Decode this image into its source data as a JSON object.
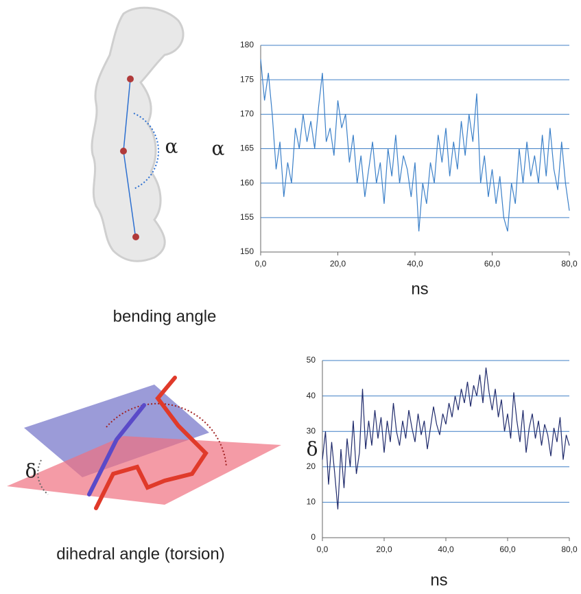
{
  "panels": [
    {
      "caption": "bending angle",
      "symbol": "α"
    },
    {
      "caption": "dihedral angle (torsion)",
      "symbol": "δ"
    }
  ],
  "chart_data": [
    {
      "type": "line",
      "ylabel": "α",
      "xlabel": "ns",
      "grid": true,
      "x": [
        0,
        1,
        2,
        3,
        4,
        5,
        6,
        7,
        8,
        9,
        10,
        11,
        12,
        13,
        14,
        15,
        16,
        17,
        18,
        19,
        20,
        21,
        22,
        23,
        24,
        25,
        26,
        27,
        28,
        29,
        30,
        31,
        32,
        33,
        34,
        35,
        36,
        37,
        38,
        39,
        40,
        41,
        42,
        43,
        44,
        45,
        46,
        47,
        48,
        49,
        50,
        51,
        52,
        53,
        54,
        55,
        56,
        57,
        58,
        59,
        60,
        61,
        62,
        63,
        64,
        65,
        66,
        67,
        68,
        69,
        70,
        71,
        72,
        73,
        74,
        75,
        76,
        77,
        78,
        79,
        80
      ],
      "series": [
        {
          "color": "#3a7fc8",
          "values": [
            178,
            172,
            176,
            170,
            162,
            166,
            158,
            163,
            160,
            168,
            165,
            170,
            166,
            169,
            165,
            171,
            176,
            166,
            168,
            164,
            172,
            168,
            170,
            163,
            167,
            160,
            164,
            158,
            162,
            166,
            160,
            163,
            157,
            165,
            161,
            167,
            160,
            164,
            162,
            158,
            163,
            153,
            160,
            157,
            163,
            160,
            167,
            163,
            168,
            161,
            166,
            162,
            169,
            164,
            170,
            166,
            173,
            160,
            164,
            158,
            162,
            157,
            161,
            155,
            153,
            160,
            157,
            165,
            160,
            166,
            161,
            164,
            160,
            167,
            161,
            168,
            162,
            159,
            166,
            160,
            156
          ]
        }
      ],
      "xlim": [
        0,
        80
      ],
      "xticks": [
        {
          "value": 0,
          "label": "0,0"
        },
        {
          "value": 20,
          "label": "20,0"
        },
        {
          "value": 40,
          "label": "40,0"
        },
        {
          "value": 60,
          "label": "60,0"
        },
        {
          "value": 80,
          "label": "80,0"
        }
      ],
      "ylim": [
        150,
        180
      ],
      "yticks": [
        150,
        155,
        160,
        165,
        170,
        175,
        180
      ]
    },
    {
      "type": "line",
      "ylabel": "δ",
      "xlabel": "ns",
      "grid": true,
      "x": [
        0,
        1,
        2,
        3,
        4,
        5,
        6,
        7,
        8,
        9,
        10,
        11,
        12,
        13,
        14,
        15,
        16,
        17,
        18,
        19,
        20,
        21,
        22,
        23,
        24,
        25,
        26,
        27,
        28,
        29,
        30,
        31,
        32,
        33,
        34,
        35,
        36,
        37,
        38,
        39,
        40,
        41,
        42,
        43,
        44,
        45,
        46,
        47,
        48,
        49,
        50,
        51,
        52,
        53,
        54,
        55,
        56,
        57,
        58,
        59,
        60,
        61,
        62,
        63,
        64,
        65,
        66,
        67,
        68,
        69,
        70,
        71,
        72,
        73,
        74,
        75,
        76,
        77,
        78,
        79,
        80
      ],
      "series": [
        {
          "color": "#1f2a6b",
          "values": [
            22,
            30,
            15,
            27,
            18,
            8,
            25,
            14,
            28,
            20,
            33,
            18,
            24,
            42,
            25,
            33,
            26,
            36,
            28,
            34,
            24,
            33,
            27,
            38,
            30,
            26,
            33,
            28,
            36,
            31,
            27,
            35,
            29,
            33,
            25,
            31,
            37,
            32,
            29,
            35,
            32,
            38,
            34,
            40,
            36,
            42,
            38,
            44,
            37,
            43,
            40,
            46,
            38,
            48,
            41,
            36,
            42,
            34,
            39,
            30,
            35,
            28,
            41,
            33,
            27,
            36,
            24,
            31,
            35,
            28,
            33,
            26,
            32,
            29,
            23,
            31,
            27,
            34,
            22,
            29,
            26
          ]
        }
      ],
      "xlim": [
        0,
        80
      ],
      "xticks": [
        {
          "value": 0,
          "label": "0,0"
        },
        {
          "value": 20,
          "label": "20,0"
        },
        {
          "value": 40,
          "label": "40,0"
        },
        {
          "value": 60,
          "label": "60,0"
        },
        {
          "value": 80,
          "label": "80,0"
        }
      ],
      "ylim": [
        0,
        50
      ],
      "yticks": [
        0,
        10,
        20,
        30,
        40,
        50
      ]
    }
  ]
}
